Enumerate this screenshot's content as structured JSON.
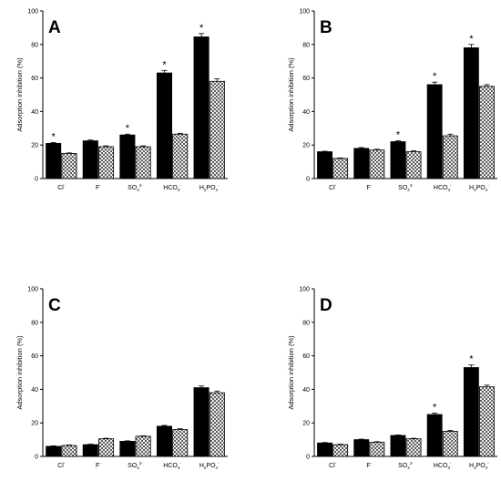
{
  "chart_data": [
    {
      "type": "bar",
      "panel": "A",
      "ylabel": "Adsorption inhibition (%)",
      "ylim": [
        0,
        100
      ],
      "yticks": [
        "0",
        "20",
        "40",
        "60",
        "80",
        "100"
      ],
      "categories": [
        {
          "base": "Cl",
          "sub": "",
          "sup": "-"
        },
        {
          "base": "F",
          "sub": "",
          "sup": "-"
        },
        {
          "base": "SO",
          "sub": "4",
          "sup": "2-"
        },
        {
          "base": "HCO",
          "sub": "3",
          "sup": "-"
        },
        {
          "base": "H",
          "sub": "2",
          "mid": "PO",
          "sub2": "4",
          "sup": "-"
        }
      ],
      "series": [
        {
          "style": "solid",
          "values": [
            21,
            22.5,
            26,
            63,
            84.5
          ],
          "errors": [
            0.5,
            0.5,
            0.5,
            1.5,
            2
          ]
        },
        {
          "style": "hatched",
          "values": [
            15,
            19,
            19,
            26.5,
            58
          ],
          "errors": [
            0.3,
            0.5,
            0.5,
            0.5,
            1.5
          ]
        }
      ],
      "significant": [
        true,
        false,
        true,
        true,
        true
      ]
    },
    {
      "type": "bar",
      "panel": "B",
      "ylabel": "Adsorption inhibition (%)",
      "ylim": [
        0,
        100
      ],
      "yticks": [
        "0",
        "20",
        "40",
        "60",
        "80",
        "100"
      ],
      "categories": [
        {
          "base": "Cl",
          "sub": "",
          "sup": "-"
        },
        {
          "base": "F",
          "sub": "",
          "sup": "-"
        },
        {
          "base": "SO",
          "sub": "4",
          "sup": "2-"
        },
        {
          "base": "HCO",
          "sub": "3",
          "sup": "-"
        },
        {
          "base": "H",
          "sub": "2",
          "mid": "PO",
          "sub2": "4",
          "sup": "-"
        }
      ],
      "series": [
        {
          "style": "solid",
          "values": [
            16,
            18,
            22,
            56,
            78
          ],
          "errors": [
            0.3,
            0.5,
            0.5,
            1.5,
            2
          ]
        },
        {
          "style": "hatched",
          "values": [
            12,
            17,
            16,
            25.5,
            55
          ],
          "errors": [
            0.3,
            0.5,
            0.5,
            1,
            1
          ]
        }
      ],
      "significant": [
        false,
        false,
        true,
        true,
        true
      ]
    },
    {
      "type": "bar",
      "panel": "C",
      "ylabel": "Adsorption inhibition (%)",
      "ylim": [
        0,
        100
      ],
      "yticks": [
        "0",
        "20",
        "40",
        "60",
        "80",
        "100"
      ],
      "categories": [
        {
          "base": "Cl",
          "sub": "",
          "sup": "-"
        },
        {
          "base": "F",
          "sub": "",
          "sup": "-"
        },
        {
          "base": "SO",
          "sub": "4",
          "sup": "2-"
        },
        {
          "base": "HCO",
          "sub": "3",
          "sup": "-"
        },
        {
          "base": "H",
          "sub": "2",
          "mid": "PO",
          "sub2": "4",
          "sup": "-"
        }
      ],
      "series": [
        {
          "style": "solid",
          "values": [
            6,
            7,
            9,
            18,
            41
          ],
          "errors": [
            0.3,
            0.3,
            0.3,
            0.5,
            1
          ]
        },
        {
          "style": "hatched",
          "values": [
            6.5,
            10.5,
            12,
            16,
            38
          ],
          "errors": [
            0.3,
            0.3,
            0.3,
            0.5,
            1
          ]
        }
      ],
      "significant": [
        false,
        false,
        false,
        false,
        false
      ]
    },
    {
      "type": "bar",
      "panel": "D",
      "ylabel": "Adsorption inhibition (%)",
      "ylim": [
        0,
        100
      ],
      "yticks": [
        "0",
        "20",
        "40",
        "60",
        "80",
        "100"
      ],
      "categories": [
        {
          "base": "Cl",
          "sub": "",
          "sup": "-"
        },
        {
          "base": "F",
          "sub": "",
          "sup": "-"
        },
        {
          "base": "SO",
          "sub": "4",
          "sup": "2-"
        },
        {
          "base": "HCO",
          "sub": "3",
          "sup": "-"
        },
        {
          "base": "H",
          "sub": "2",
          "mid": "PO",
          "sub2": "4",
          "sup": "-"
        }
      ],
      "series": [
        {
          "style": "solid",
          "values": [
            8,
            10,
            12.5,
            25,
            53
          ],
          "errors": [
            0.3,
            0.3,
            0.3,
            0.8,
            1.5
          ]
        },
        {
          "style": "hatched",
          "values": [
            7,
            8.5,
            10.5,
            15,
            41.5
          ],
          "errors": [
            0.3,
            0.3,
            0.3,
            0.5,
            1
          ]
        }
      ],
      "significant": [
        false,
        false,
        false,
        true,
        true
      ]
    }
  ],
  "significance_marker": "*",
  "colors": {
    "solid": "#000000",
    "hatched_fill": "#ffffff",
    "stroke": "#000000",
    "axis": "#000000"
  }
}
